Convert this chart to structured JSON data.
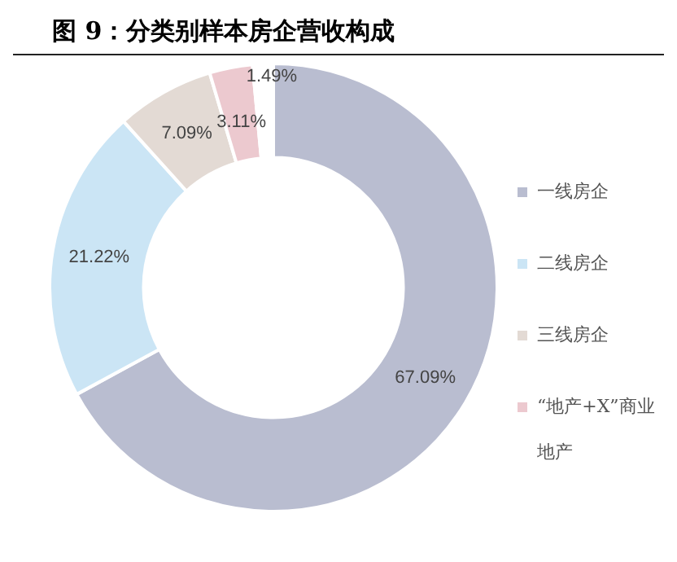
{
  "chart_data": {
    "type": "donut",
    "title": "图 9：分类别样本房企营收构成",
    "categories": [
      "一线房企",
      "二线房企",
      "三线房企",
      "“地产+X”商业地产",
      null
    ],
    "values": [
      67.09,
      21.22,
      7.09,
      3.11,
      1.49
    ],
    "value_labels": [
      "67.09%",
      "21.22%",
      "7.09%",
      "3.11%",
      "1.49%"
    ],
    "colors": [
      "#b9bdd0",
      "#cbe5f5",
      "#e3dad4",
      "#ecc9cf",
      "#ffffff"
    ],
    "legend": "right"
  }
}
